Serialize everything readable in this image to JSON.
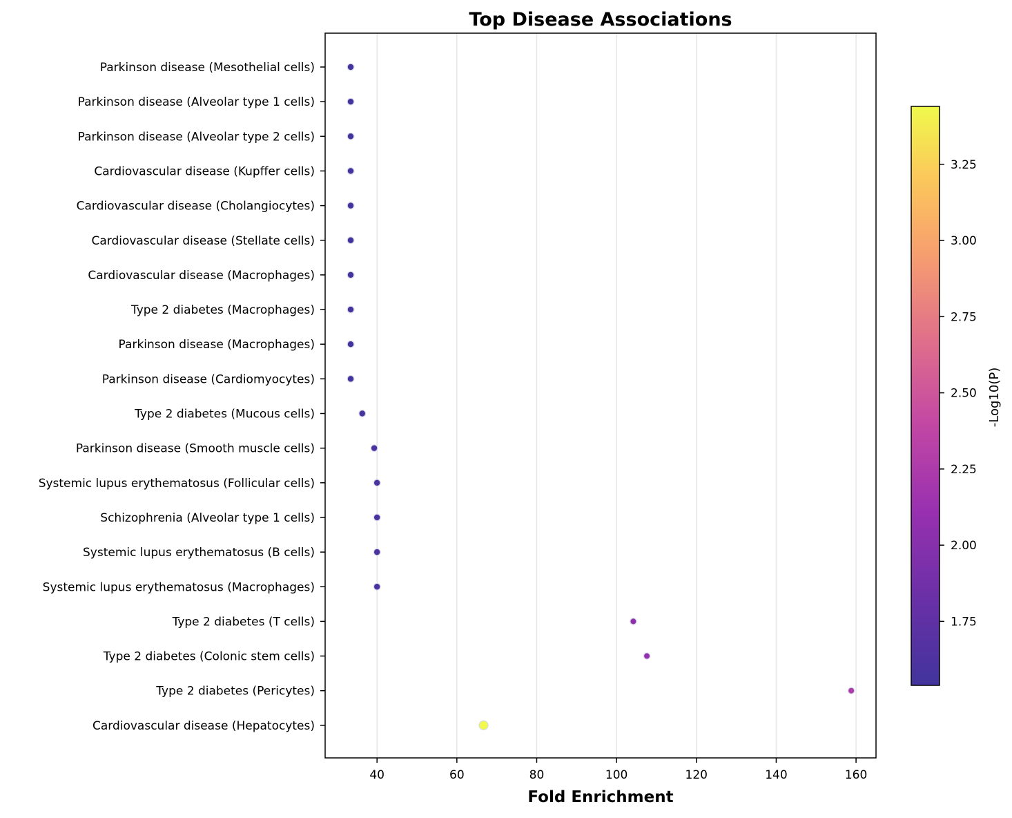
{
  "chart_data": {
    "type": "scatter",
    "title": "Top Disease Associations",
    "xlabel": "Fold Enrichment",
    "ylabel": "",
    "xlim": [
      27,
      165
    ],
    "xticks": [
      40,
      60,
      80,
      100,
      120,
      140,
      160
    ],
    "grid": "x",
    "colorbar": {
      "label": "-Log10(P)",
      "colormap": "plasma",
      "range": [
        1.54,
        3.44
      ],
      "ticks": [
        1.75,
        2.0,
        2.25,
        2.5,
        2.75,
        3.0,
        3.25
      ],
      "tick_labels": [
        "1.75",
        "2.00",
        "2.25",
        "2.50",
        "2.75",
        "3.00",
        "3.25"
      ]
    },
    "categories": [
      "Parkinson disease (Mesothelial cells)",
      "Parkinson disease (Alveolar type 1 cells)",
      "Parkinson disease (Alveolar type 2 cells)",
      "Cardiovascular disease (Kupffer cells)",
      "Cardiovascular disease (Cholangiocytes)",
      "Cardiovascular disease (Stellate cells)",
      "Cardiovascular disease (Macrophages)",
      "Type 2 diabetes (Macrophages)",
      "Parkinson disease (Macrophages)",
      "Parkinson disease (Cardiomyocytes)",
      "Type 2 diabetes (Mucous cells)",
      "Parkinson disease (Smooth muscle cells)",
      "Systemic lupus erythematosus (Follicular cells)",
      "Schizophrenia (Alveolar type 1 cells)",
      "Systemic lupus erythematosus (B cells)",
      "Systemic lupus erythematosus (Macrophages)",
      "Type 2 diabetes (T cells)",
      "Type 2 diabetes (Colonic stem cells)",
      "Type 2 diabetes (Pericytes)",
      "Cardiovascular disease (Hepatocytes)"
    ],
    "fold_enrichment": [
      33.4,
      33.4,
      33.4,
      33.4,
      33.4,
      33.4,
      33.4,
      33.4,
      33.4,
      33.4,
      36.3,
      39.3,
      40.0,
      40.0,
      40.0,
      40.0,
      104.2,
      107.6,
      158.8,
      66.7
    ],
    "neg_log10_p": [
      1.55,
      1.55,
      1.55,
      1.55,
      1.55,
      1.55,
      1.55,
      1.55,
      1.55,
      1.55,
      1.57,
      1.6,
      1.6,
      1.6,
      1.6,
      1.6,
      2.05,
      2.08,
      2.25,
      3.44
    ]
  }
}
